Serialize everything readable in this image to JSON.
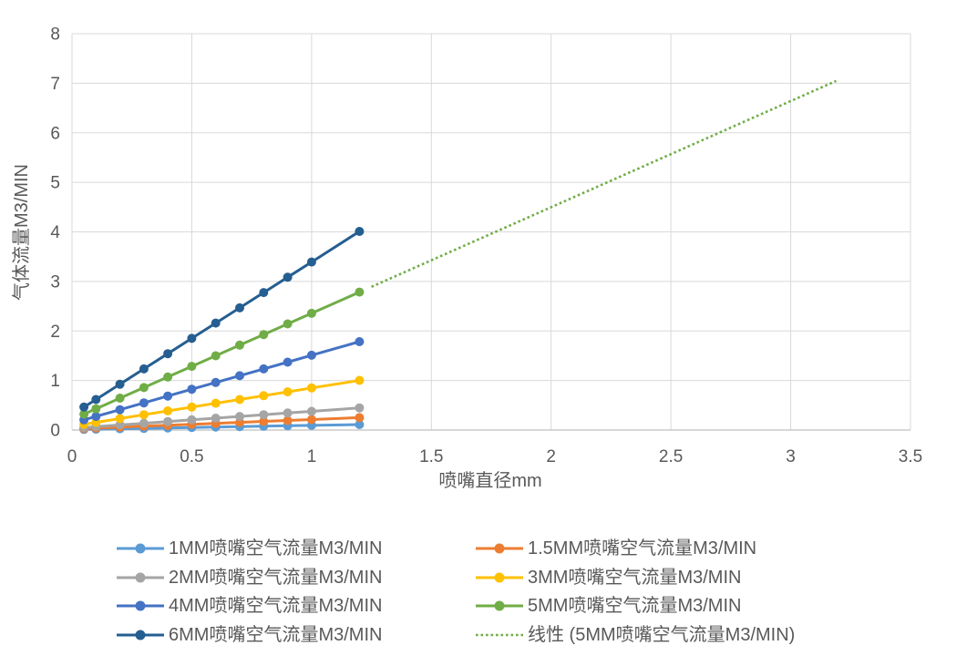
{
  "chart_data": {
    "type": "line",
    "title": "",
    "xlabel": "喷嘴直径mm",
    "ylabel": "气体流量M3/MIN",
    "xlim": [
      0,
      3.5
    ],
    "ylim": [
      0,
      8
    ],
    "x_ticks": [
      0,
      0.5,
      1,
      1.5,
      2,
      2.5,
      3,
      3.5
    ],
    "y_ticks": [
      0,
      1,
      2,
      3,
      4,
      5,
      6,
      7,
      8
    ],
    "grid": true,
    "legend_position": "bottom-two-columns",
    "x": [
      0.05,
      0.1,
      0.2,
      0.3,
      0.4,
      0.5,
      0.6,
      0.7,
      0.8,
      0.9,
      1.0,
      1.2
    ],
    "series": [
      {
        "name": "1MM喷嘴空气流量M3/MIN",
        "color": "#5B9BD5",
        "values": [
          0.013,
          0.017,
          0.026,
          0.034,
          0.043,
          0.051,
          0.06,
          0.069,
          0.077,
          0.086,
          0.094,
          0.111
        ]
      },
      {
        "name": "1.5MM喷嘴空气流量M3/MIN",
        "color": "#ED7D31",
        "values": [
          0.029,
          0.039,
          0.058,
          0.077,
          0.096,
          0.116,
          0.135,
          0.154,
          0.174,
          0.193,
          0.212,
          0.251
        ]
      },
      {
        "name": "2MM喷嘴空气流量M3/MIN",
        "color": "#A5A5A5",
        "values": [
          0.051,
          0.069,
          0.103,
          0.137,
          0.171,
          0.206,
          0.24,
          0.274,
          0.309,
          0.343,
          0.377,
          0.446
        ]
      },
      {
        "name": "3MM喷嘴空气流量M3/MIN",
        "color": "#FFC000",
        "values": [
          0.116,
          0.154,
          0.231,
          0.309,
          0.386,
          0.463,
          0.54,
          0.617,
          0.694,
          0.771,
          0.849,
          1.003
        ]
      },
      {
        "name": "4MM喷嘴空气流量M3/MIN",
        "color": "#4472C4",
        "values": [
          0.206,
          0.274,
          0.411,
          0.548,
          0.686,
          0.823,
          0.96,
          1.097,
          1.234,
          1.371,
          1.509,
          1.783
        ]
      },
      {
        "name": "5MM喷嘴空气流量M3/MIN",
        "color": "#70AD47",
        "values": [
          0.321,
          0.428,
          0.643,
          0.857,
          1.071,
          1.285,
          1.499,
          1.714,
          1.928,
          2.142,
          2.356,
          2.785
        ]
      },
      {
        "name": "6MM喷嘴空气流量M3/MIN",
        "color": "#255E91",
        "values": [
          0.463,
          0.617,
          0.925,
          1.234,
          1.542,
          1.851,
          2.159,
          2.467,
          2.776,
          3.084,
          3.392,
          4.009
        ]
      }
    ],
    "trendline": {
      "label": "线性 (5MM喷嘴空气流量M3/MIN)",
      "source_series": "5MM喷嘴空气流量M3/MIN",
      "color": "#70AD47",
      "line_style": "dotted",
      "x_range": [
        1.25,
        3.19
      ],
      "slope": 2.142,
      "intercept": 0.214
    },
    "style": {
      "grid_color": "#D9D9D9",
      "axis_color": "#BFBFBF",
      "text_color": "#595959",
      "background": "#FFFFFF",
      "marker_radius": 5,
      "line_width": 3
    }
  }
}
